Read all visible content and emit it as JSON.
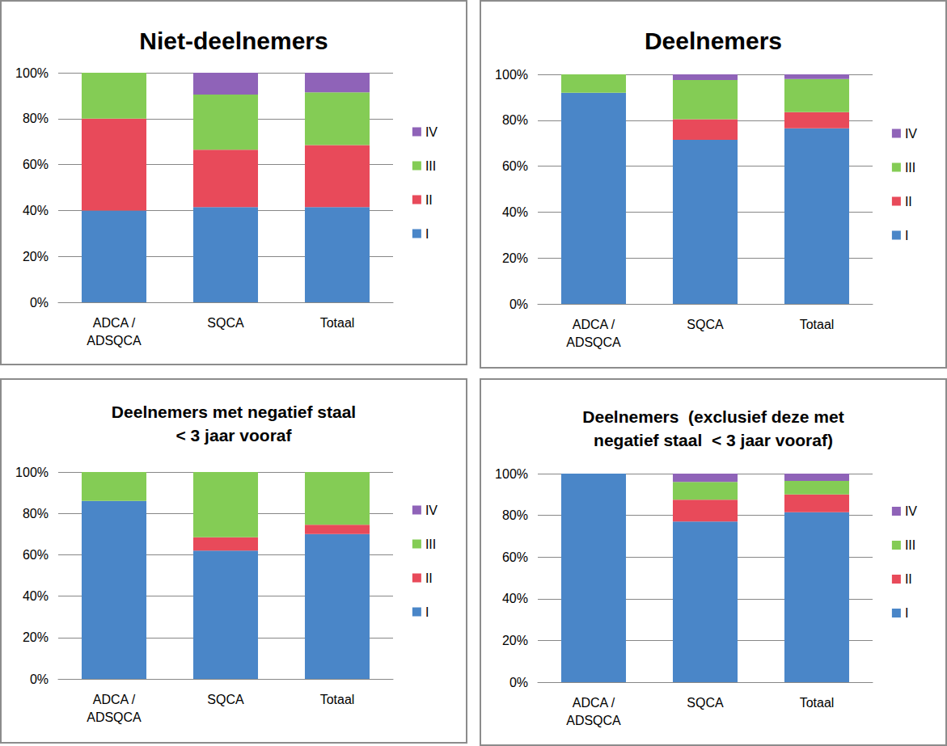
{
  "chart_data": [
    {
      "type": "bar",
      "stacked": true,
      "grid": true,
      "legend": "right",
      "title": "Niet-deelnemers",
      "categories": [
        "ADCA /\nADSQCA",
        "SQCA",
        "Totaal"
      ],
      "series": [
        {
          "name": "I",
          "color": "#4a86c8",
          "values": [
            40,
            41.5,
            41.5
          ]
        },
        {
          "name": "II",
          "color": "#e84a5a",
          "values": [
            40,
            25,
            27
          ]
        },
        {
          "name": "III",
          "color": "#84cc55",
          "values": [
            20,
            24,
            23
          ]
        },
        {
          "name": "IV",
          "color": "#8f63b8",
          "values": [
            0,
            9.5,
            8.5
          ]
        }
      ],
      "ylim": [
        0,
        100
      ],
      "yticks": [
        {
          "value": 0,
          "label": "0%"
        },
        {
          "value": 20,
          "label": "20%"
        },
        {
          "value": 40,
          "label": "40%"
        },
        {
          "value": 60,
          "label": "60%"
        },
        {
          "value": 80,
          "label": "80%"
        },
        {
          "value": 100,
          "label": "100%"
        }
      ]
    },
    {
      "type": "bar",
      "stacked": true,
      "grid": true,
      "legend": "right",
      "title": "Deelnemers",
      "categories": [
        "ADCA /\nADSQCA",
        "SQCA",
        "Totaal"
      ],
      "series": [
        {
          "name": "I",
          "color": "#4a86c8",
          "values": [
            92,
            71.5,
            76.5
          ]
        },
        {
          "name": "II",
          "color": "#e84a5a",
          "values": [
            0,
            9,
            7
          ]
        },
        {
          "name": "III",
          "color": "#84cc55",
          "values": [
            8,
            17,
            14.5
          ]
        },
        {
          "name": "IV",
          "color": "#8f63b8",
          "values": [
            0,
            2.5,
            2
          ]
        }
      ],
      "ylim": [
        0,
        100
      ],
      "yticks": [
        {
          "value": 0,
          "label": "0%"
        },
        {
          "value": 20,
          "label": "20%"
        },
        {
          "value": 40,
          "label": "40%"
        },
        {
          "value": 60,
          "label": "60%"
        },
        {
          "value": 80,
          "label": "80%"
        },
        {
          "value": 100,
          "label": "100%"
        }
      ]
    },
    {
      "type": "bar",
      "stacked": true,
      "grid": true,
      "legend": "right",
      "title": "Deelnemers met negatief staal\n< 3 jaar vooraf",
      "categories": [
        "ADCA /\nADSQCA",
        "SQCA",
        "Totaal"
      ],
      "series": [
        {
          "name": "I",
          "color": "#4a86c8",
          "values": [
            86,
            62,
            70
          ]
        },
        {
          "name": "II",
          "color": "#e84a5a",
          "values": [
            0,
            6.5,
            4.5
          ]
        },
        {
          "name": "III",
          "color": "#84cc55",
          "values": [
            14,
            31.5,
            25.5
          ]
        },
        {
          "name": "IV",
          "color": "#8f63b8",
          "values": [
            0,
            0,
            0
          ]
        }
      ],
      "ylim": [
        0,
        100
      ],
      "yticks": [
        {
          "value": 0,
          "label": "0%"
        },
        {
          "value": 20,
          "label": "20%"
        },
        {
          "value": 40,
          "label": "40%"
        },
        {
          "value": 60,
          "label": "60%"
        },
        {
          "value": 80,
          "label": "80%"
        },
        {
          "value": 100,
          "label": "100%"
        }
      ]
    },
    {
      "type": "bar",
      "stacked": true,
      "grid": true,
      "legend": "right",
      "title": "Deelnemers  (exclusief deze met\nnegatief staal  < 3 jaar vooraf)",
      "categories": [
        "ADCA /\nADSQCA",
        "SQCA",
        "Totaal"
      ],
      "series": [
        {
          "name": "I",
          "color": "#4a86c8",
          "values": [
            100,
            77,
            81.5
          ]
        },
        {
          "name": "II",
          "color": "#e84a5a",
          "values": [
            0,
            10.5,
            8.5
          ]
        },
        {
          "name": "III",
          "color": "#84cc55",
          "values": [
            0,
            8.5,
            6.5
          ]
        },
        {
          "name": "IV",
          "color": "#8f63b8",
          "values": [
            0,
            4,
            3.5
          ]
        }
      ],
      "ylim": [
        0,
        100
      ],
      "yticks": [
        {
          "value": 0,
          "label": "0%"
        },
        {
          "value": 20,
          "label": "20%"
        },
        {
          "value": 40,
          "label": "40%"
        },
        {
          "value": 60,
          "label": "60%"
        },
        {
          "value": 80,
          "label": "80%"
        },
        {
          "value": 100,
          "label": "100%"
        }
      ]
    }
  ]
}
